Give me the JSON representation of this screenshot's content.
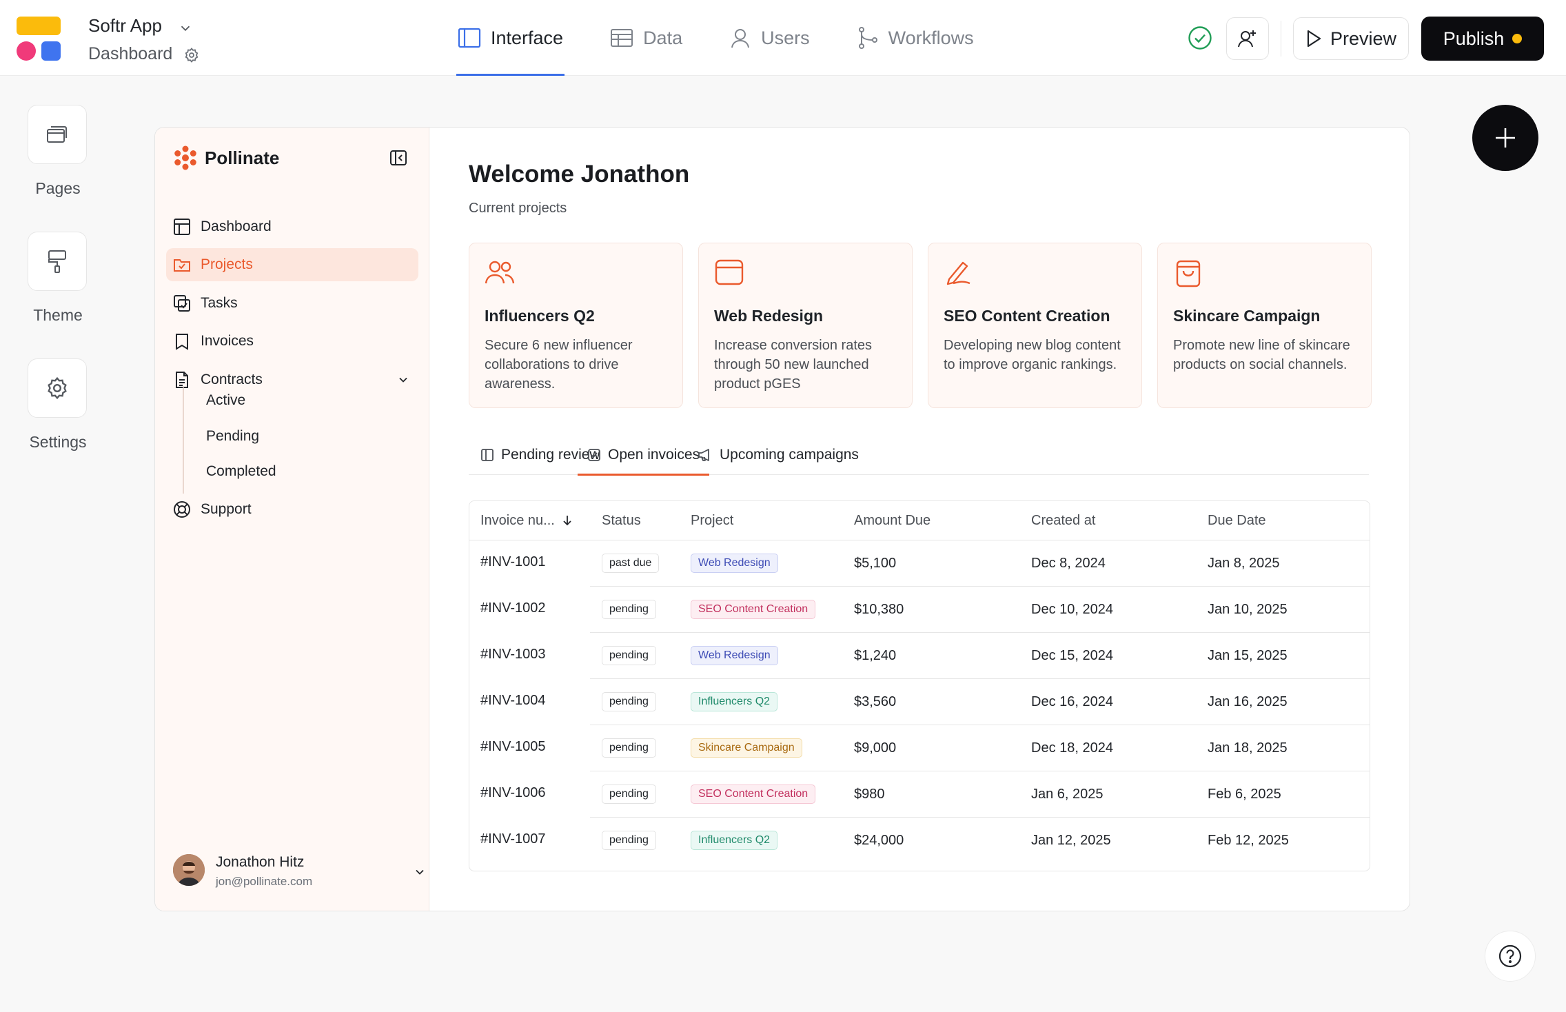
{
  "app": {
    "name": "Softr App",
    "page": "Dashboard"
  },
  "top_tabs": [
    {
      "label": "Interface",
      "icon": "layout-icon"
    },
    {
      "label": "Data",
      "icon": "table-icon"
    },
    {
      "label": "Users",
      "icon": "user-icon"
    },
    {
      "label": "Workflows",
      "icon": "workflow-icon"
    }
  ],
  "actions": {
    "preview": "Preview",
    "publish": "Publish"
  },
  "rail": [
    {
      "label": "Pages",
      "icon": "pages-icon"
    },
    {
      "label": "Theme",
      "icon": "paint-roller-icon"
    },
    {
      "label": "Settings",
      "icon": "gear-icon"
    }
  ],
  "sidebar": {
    "brand": "Pollinate",
    "items": [
      {
        "label": "Dashboard",
        "icon": "dashboard-icon"
      },
      {
        "label": "Projects",
        "icon": "projects-icon",
        "active": true
      },
      {
        "label": "Tasks",
        "icon": "tasks-icon"
      },
      {
        "label": "Invoices",
        "icon": "bookmark-icon"
      },
      {
        "label": "Contracts",
        "icon": "document-icon"
      }
    ],
    "sub_items": [
      "Active",
      "Pending",
      "Completed"
    ],
    "support": "Support",
    "user": {
      "name": "Jonathon Hitz",
      "email": "jon@pollinate.com"
    }
  },
  "main": {
    "welcome": "Welcome Jonathon",
    "subtitle": "Current projects",
    "cards": [
      {
        "title": "Influencers Q2",
        "desc": "Secure 6 new influencer collaborations to drive awareness.",
        "icon": "people-icon"
      },
      {
        "title": "Web Redesign",
        "desc": "Increase conversion rates through 50 new launched product pGES",
        "icon": "browser-icon"
      },
      {
        "title": "SEO Content Creation",
        "desc": "Developing new blog content to improve organic rankings.",
        "icon": "pen-icon"
      },
      {
        "title": "Skincare Campaign",
        "desc": "Promote new line of skincare products on social channels.",
        "icon": "shopping-bag-icon"
      }
    ],
    "tabs": [
      {
        "label": "Pending review",
        "icon": "layout-icon"
      },
      {
        "label": "Open invoices",
        "icon": "checkbox-icon",
        "active": true
      },
      {
        "label": "Upcoming campaigns",
        "icon": "megaphone-icon"
      }
    ],
    "table": {
      "headers": [
        "Invoice nu...",
        "Status",
        "Project",
        "Amount Due",
        "Created at",
        "Due Date"
      ],
      "rows": [
        {
          "invoice": "#INV-1001",
          "status": "past due",
          "project": "Web Redesign",
          "amount": "$5,100",
          "created": "Dec 8, 2024",
          "due": "Jan 8, 2025"
        },
        {
          "invoice": "#INV-1002",
          "status": "pending",
          "project": "SEO Content Creation",
          "amount": "$10,380",
          "created": "Dec 10, 2024",
          "due": "Jan  10, 2025"
        },
        {
          "invoice": "#INV-1003",
          "status": "pending",
          "project": "Web Redesign",
          "amount": "$1,240",
          "created": "Dec 15, 2024",
          "due": "Jan 15, 2025"
        },
        {
          "invoice": "#INV-1004",
          "status": "pending",
          "project": "Influencers Q2",
          "amount": "$3,560",
          "created": "Dec 16, 2024",
          "due": "Jan 16, 2025"
        },
        {
          "invoice": "#INV-1005",
          "status": "pending",
          "project": "Skincare Campaign",
          "amount": "$9,000",
          "created": "Dec 18, 2024",
          "due": "Jan 18, 2025"
        },
        {
          "invoice": "#INV-1006",
          "status": "pending",
          "project": "SEO Content Creation",
          "amount": "$980",
          "created": "Jan 6, 2025",
          "due": "Feb 6, 2025"
        },
        {
          "invoice": "#INV-1007",
          "status": "pending",
          "project": "Influencers Q2",
          "amount": "$24,000",
          "created": "Jan 12, 2025",
          "due": "Feb 12, 2025"
        }
      ]
    }
  },
  "colors": {
    "accent": "#ea5a2d",
    "tab_active": "#3b6fe8",
    "publish_bg": "#0c0c0f",
    "status_ok": "#1f9d55",
    "project_tags": {
      "Web Redesign": {
        "bg": "#eef0fc",
        "border": "#c9cff3",
        "text": "#3d4bb5"
      },
      "SEO Content Creation": {
        "bg": "#fdeef2",
        "border": "#f5c7d4",
        "text": "#c2305e"
      },
      "Influencers Q2": {
        "bg": "#eaf8f4",
        "border": "#b9e6d8",
        "text": "#1f8a6a"
      },
      "Skincare Campaign": {
        "bg": "#fdf5e4",
        "border": "#f3dca8",
        "text": "#a8690f"
      }
    }
  }
}
